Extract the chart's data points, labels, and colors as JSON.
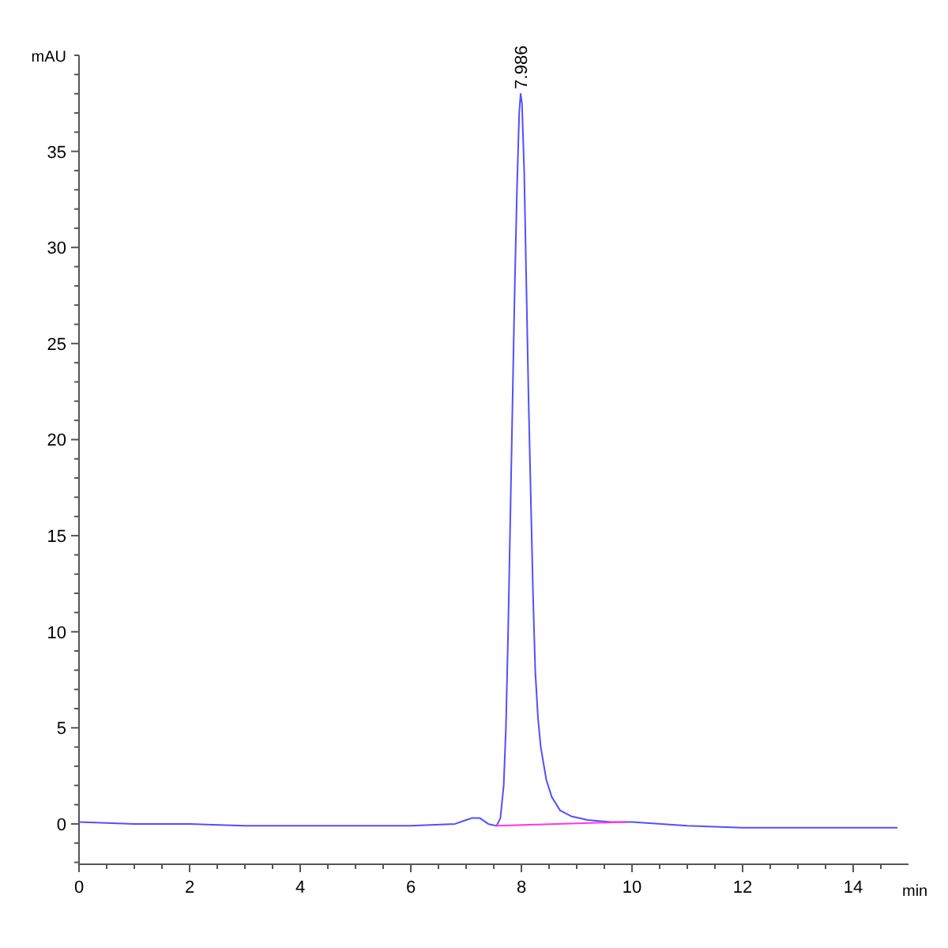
{
  "chart_data": {
    "type": "line",
    "xlabel": "min",
    "ylabel": "mAU",
    "xlim": [
      0,
      15
    ],
    "ylim": [
      -2.1,
      40
    ],
    "xticks": [
      0,
      {
        "value": 0.5,
        "label": null
      },
      {
        "value": 1,
        "label": null
      },
      {
        "value": 1.5,
        "label": null
      },
      2,
      {
        "value": 2.5,
        "label": null
      },
      {
        "value": 3,
        "label": null
      },
      {
        "value": 3.5,
        "label": null
      },
      4,
      {
        "value": 4.5,
        "label": null
      },
      {
        "value": 5,
        "label": null
      },
      {
        "value": 5.5,
        "label": null
      },
      6,
      {
        "value": 6.5,
        "label": null
      },
      {
        "value": 7,
        "label": null
      },
      {
        "value": 7.5,
        "label": null
      },
      8,
      {
        "value": 8.5,
        "label": null
      },
      {
        "value": 9,
        "label": null
      },
      {
        "value": 9.5,
        "label": null
      },
      10,
      {
        "value": 10.5,
        "label": null
      },
      {
        "value": 11,
        "label": null
      },
      {
        "value": 11.5,
        "label": null
      },
      12,
      {
        "value": 12.5,
        "label": null
      },
      {
        "value": 13,
        "label": null
      },
      {
        "value": 13.5,
        "label": null
      },
      14,
      {
        "value": 14.5,
        "label": null
      }
    ],
    "yticks": [
      {
        "value": -2,
        "label": null
      },
      {
        "value": -1,
        "label": null
      },
      0,
      {
        "value": 1,
        "label": null
      },
      {
        "value": 2,
        "label": null
      },
      {
        "value": 3,
        "label": null
      },
      {
        "value": 4,
        "label": null
      },
      5,
      {
        "value": 6,
        "label": null
      },
      {
        "value": 7,
        "label": null
      },
      {
        "value": 8,
        "label": null
      },
      {
        "value": 9,
        "label": null
      },
      10,
      {
        "value": 11,
        "label": null
      },
      {
        "value": 12,
        "label": null
      },
      {
        "value": 13,
        "label": null
      },
      {
        "value": 14,
        "label": null
      },
      15,
      {
        "value": 16,
        "label": null
      },
      {
        "value": 17,
        "label": null
      },
      {
        "value": 18,
        "label": null
      },
      {
        "value": 19,
        "label": null
      },
      20,
      {
        "value": 21,
        "label": null
      },
      {
        "value": 22,
        "label": null
      },
      {
        "value": 23,
        "label": null
      },
      {
        "value": 24,
        "label": null
      },
      25,
      {
        "value": 26,
        "label": null
      },
      {
        "value": 27,
        "label": null
      },
      {
        "value": 28,
        "label": null
      },
      {
        "value": 29,
        "label": null
      },
      30,
      {
        "value": 31,
        "label": null
      },
      {
        "value": 32,
        "label": null
      },
      {
        "value": 33,
        "label": null
      },
      {
        "value": 34,
        "label": null
      },
      35,
      {
        "value": 36,
        "label": null
      },
      {
        "value": 37,
        "label": null
      },
      {
        "value": 38,
        "label": null
      },
      {
        "value": 39,
        "label": null
      },
      {
        "value": 40,
        "label": null
      }
    ],
    "grid": false,
    "marker": "none",
    "line_style": "solid",
    "series": [
      {
        "color": "#5050ff",
        "x": [
          0,
          1,
          2,
          3,
          4,
          5,
          6,
          6.8,
          7.0,
          7.1,
          7.25,
          7.4,
          7.55,
          7.62,
          7.68,
          7.72,
          7.76,
          7.8,
          7.84,
          7.88,
          7.92,
          7.96,
          7.986,
          8.01,
          8.05,
          8.09,
          8.13,
          8.17,
          8.21,
          8.25,
          8.3,
          8.35,
          8.45,
          8.55,
          8.7,
          8.9,
          9.2,
          9.6,
          10,
          11,
          12,
          13,
          14,
          14.8
        ],
        "values": [
          0.1,
          0,
          0,
          -0.1,
          -0.1,
          -0.1,
          -0.1,
          0,
          0.2,
          0.3,
          0.3,
          0,
          -0.1,
          0.3,
          2,
          5,
          10,
          16,
          22,
          28,
          33,
          37,
          38,
          37.5,
          34,
          28,
          22,
          17,
          12,
          8,
          5.5,
          4,
          2.3,
          1.4,
          0.7,
          0.4,
          0.2,
          0.1,
          0.1,
          -0.1,
          -0.2,
          -0.2,
          -0.2,
          -0.2
        ]
      },
      {
        "color": "#ff33ee",
        "x": [
          7.55,
          9.9
        ],
        "values": [
          -0.1,
          0.1
        ]
      }
    ],
    "annotations": [
      {
        "text": "7.986",
        "x": 7.986,
        "y": 38
      }
    ]
  }
}
